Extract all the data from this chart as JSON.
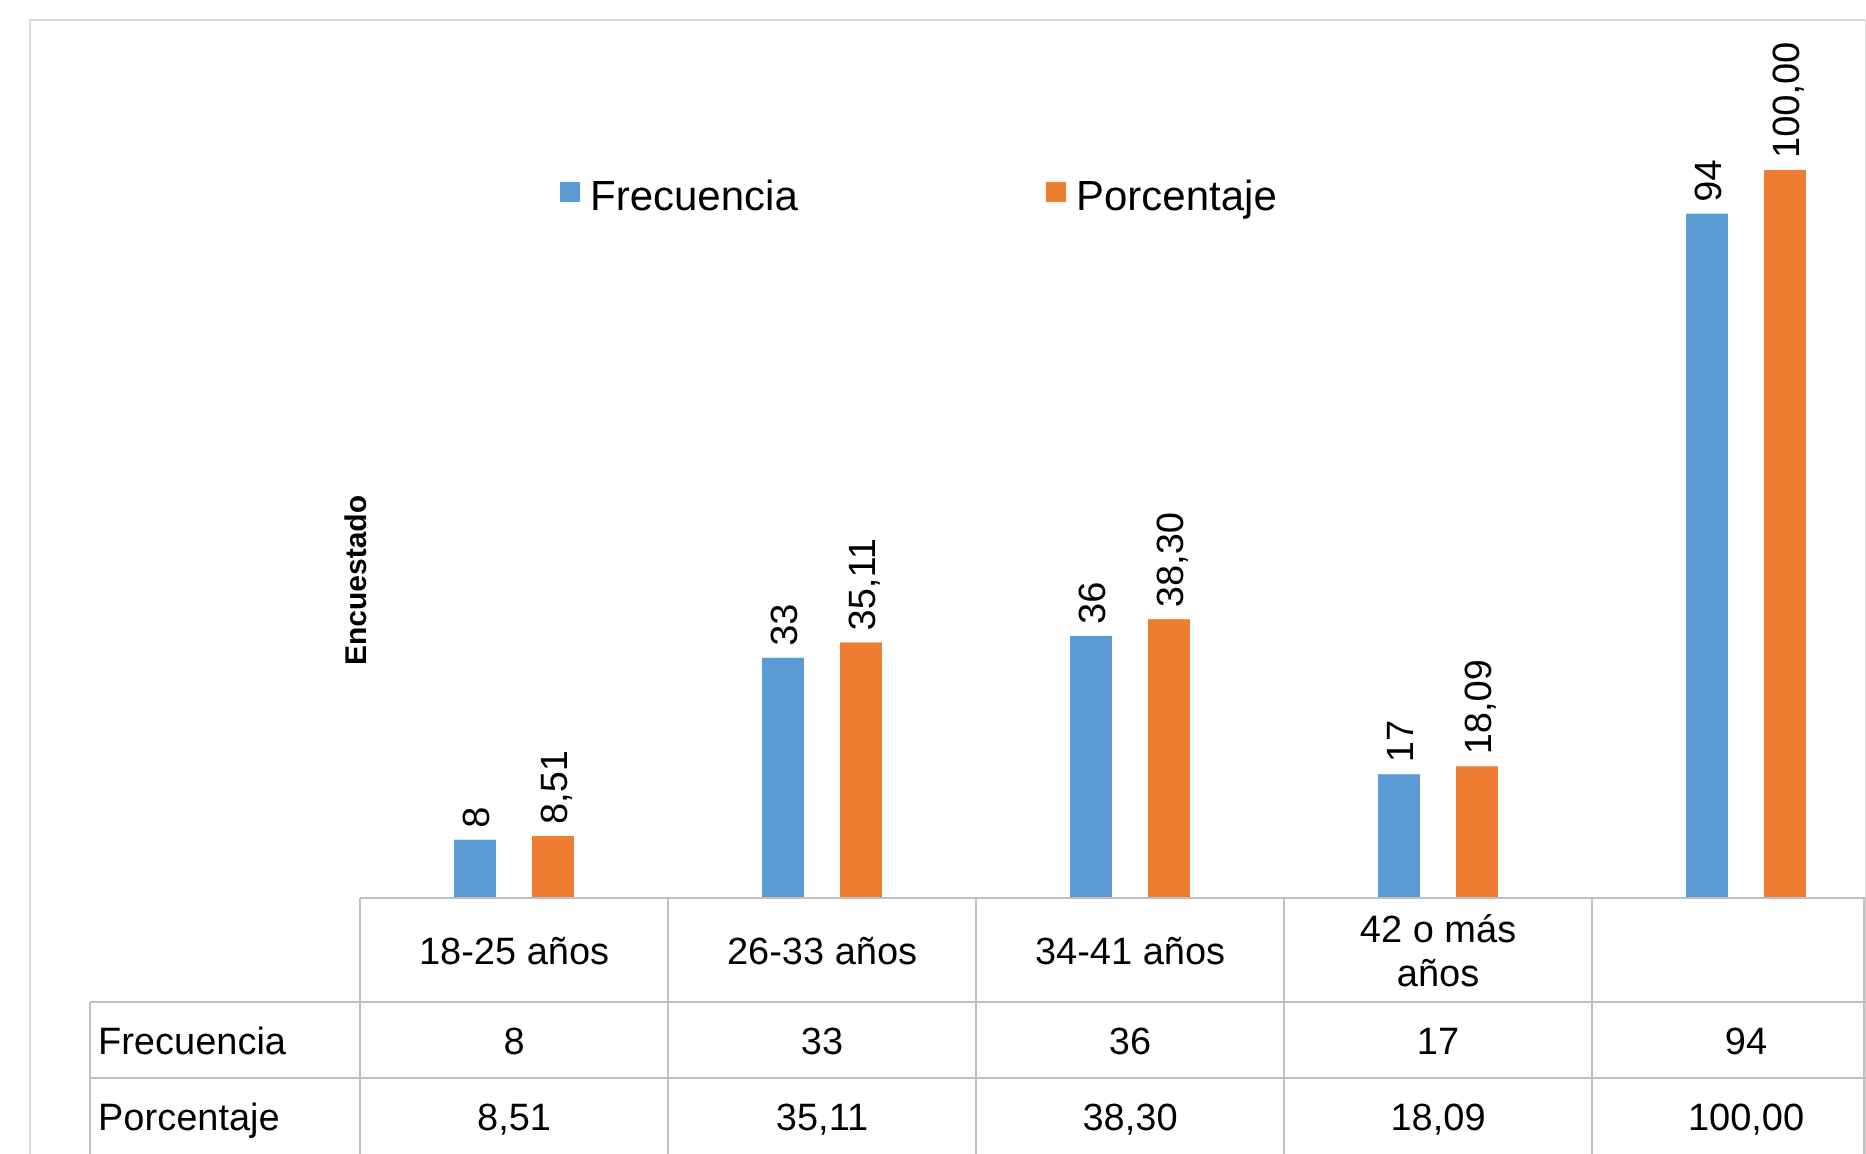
{
  "chart_data": {
    "type": "bar",
    "ylabel": "Encuestado",
    "categories": [
      "18-25 años",
      "26-33 años",
      "34-41 años",
      "42 o más años",
      null
    ],
    "series": [
      {
        "name": "Frecuencia",
        "color": "#5b9bd5",
        "values": [
          8,
          33,
          36,
          17,
          94
        ],
        "value_labels": [
          "8",
          "33",
          "36",
          "17",
          "94"
        ]
      },
      {
        "name": "Porcentaje",
        "color": "#ed7d31",
        "values": [
          8.51,
          35.11,
          38.3,
          18.09,
          100
        ],
        "value_labels": [
          "8,51",
          "35,11",
          "38,30",
          "18,09",
          "100,00"
        ]
      }
    ],
    "legend": "top"
  }
}
